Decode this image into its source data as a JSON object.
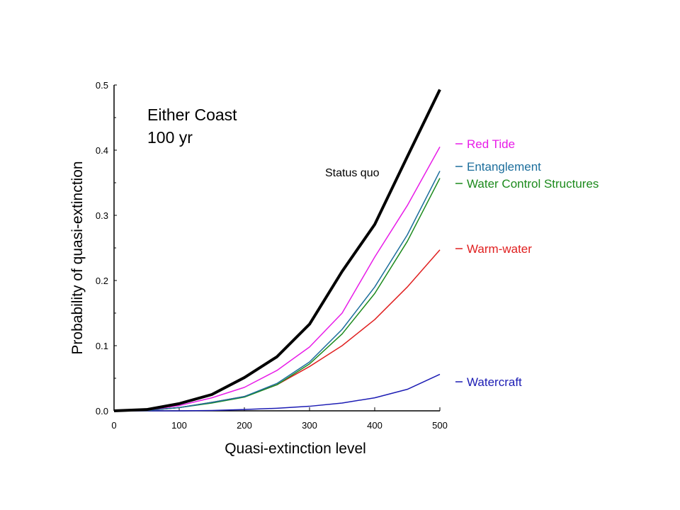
{
  "chart_data": {
    "type": "line",
    "title": "",
    "annotation": [
      "Either Coast",
      "100 yr"
    ],
    "xlabel": "Quasi-extinction level",
    "ylabel": "Probability of quasi-extinction",
    "xlim": [
      0,
      500
    ],
    "ylim": [
      0,
      0.5
    ],
    "xticks": [
      "0",
      "100",
      "200",
      "300",
      "400",
      "500"
    ],
    "yticks": [
      "0.0",
      "0.1",
      "0.2",
      "0.3",
      "0.4",
      "0.5"
    ],
    "grid": false,
    "x": [
      0,
      50,
      100,
      150,
      200,
      250,
      300,
      350,
      400,
      450,
      500
    ],
    "series": [
      {
        "name": "Status quo",
        "color": "#000000",
        "width": 4,
        "label_style": "inline",
        "values": [
          0,
          0.002,
          0.011,
          0.025,
          0.051,
          0.083,
          0.133,
          0.214,
          0.286,
          0.39,
          0.493
        ]
      },
      {
        "name": "Red Tide",
        "color": "#e81ce8",
        "width": 1.5,
        "values": [
          0,
          0.001,
          0.008,
          0.02,
          0.036,
          0.062,
          0.098,
          0.15,
          0.236,
          0.315,
          0.405
        ]
      },
      {
        "name": "Entanglement",
        "color": "#1c6e9c",
        "width": 1.5,
        "values": [
          0,
          0.0005,
          0.005,
          0.013,
          0.022,
          0.042,
          0.075,
          0.125,
          0.19,
          0.27,
          0.368
        ]
      },
      {
        "name": "Water Control Structures",
        "color": "#1c8a1c",
        "width": 1.5,
        "values": [
          0,
          0.0005,
          0.005,
          0.012,
          0.021,
          0.04,
          0.072,
          0.118,
          0.18,
          0.26,
          0.357
        ]
      },
      {
        "name": "Warm-water",
        "color": "#e02020",
        "width": 1.5,
        "values": [
          0,
          0.0005,
          0.005,
          0.013,
          0.022,
          0.04,
          0.068,
          0.1,
          0.14,
          0.19,
          0.247
        ]
      },
      {
        "name": "Watercraft",
        "color": "#1c1cb4",
        "width": 1.5,
        "values": [
          0,
          0,
          0,
          0.0005,
          0.002,
          0.004,
          0.007,
          0.012,
          0.02,
          0.033,
          0.056
        ]
      }
    ]
  }
}
